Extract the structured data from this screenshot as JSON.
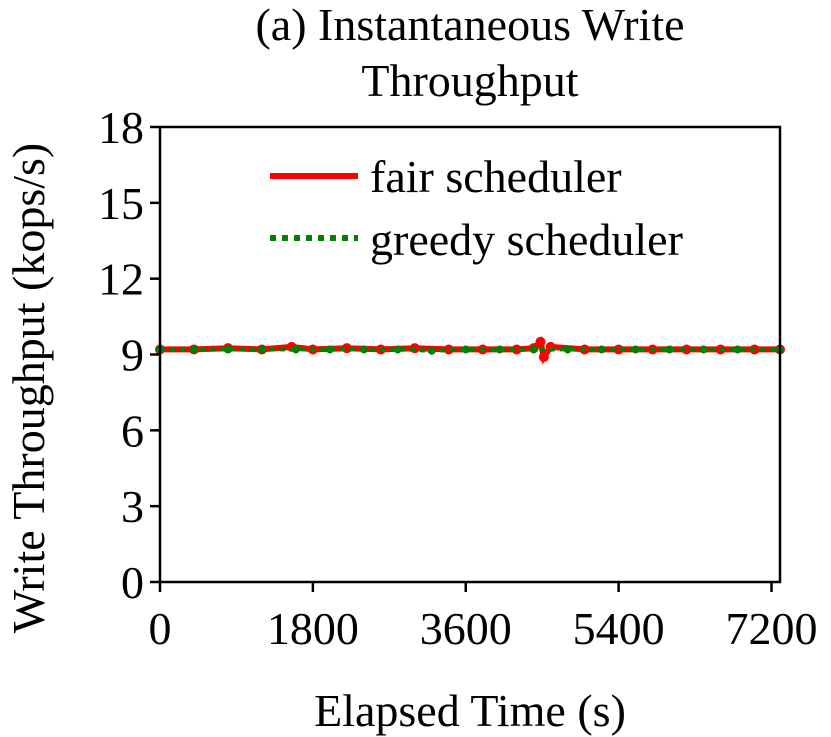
{
  "chart_data": {
    "type": "line",
    "title_lines": [
      "(a) Instantaneous Write",
      "Throughput"
    ],
    "xlabel": "Elapsed Time (s)",
    "ylabel": "Write Throughput (kops/s)",
    "xlim": [
      0,
      7300
    ],
    "ylim": [
      0,
      18
    ],
    "xticks": [
      0,
      1800,
      3600,
      5400,
      7200
    ],
    "yticks": [
      0,
      3,
      6,
      9,
      12,
      15,
      18
    ],
    "grid": false,
    "legend_position": "upper-right",
    "series": [
      {
        "name": "fair scheduler",
        "color": "#ff0000",
        "style": "solid",
        "x": [
          0,
          400,
          800,
          1200,
          1550,
          1800,
          2200,
          2600,
          3000,
          3400,
          3800,
          4200,
          4400,
          4480,
          4520,
          4600,
          5000,
          5400,
          5800,
          6200,
          6600,
          7000,
          7300
        ],
        "y": [
          9.2,
          9.2,
          9.25,
          9.2,
          9.3,
          9.2,
          9.25,
          9.2,
          9.25,
          9.2,
          9.2,
          9.2,
          9.25,
          9.5,
          8.9,
          9.3,
          9.2,
          9.2,
          9.2,
          9.2,
          9.2,
          9.2,
          9.2
        ]
      },
      {
        "name": "greedy scheduler",
        "color": "#008000",
        "style": "dotted",
        "x": [
          0,
          400,
          800,
          1200,
          1600,
          2000,
          2400,
          2800,
          3200,
          3600,
          4000,
          4400,
          4800,
          5200,
          5600,
          6000,
          6400,
          6800,
          7300
        ],
        "y": [
          9.2,
          9.2,
          9.2,
          9.2,
          9.2,
          9.2,
          9.2,
          9.2,
          9.15,
          9.2,
          9.2,
          9.2,
          9.2,
          9.2,
          9.2,
          9.2,
          9.2,
          9.2,
          9.2
        ]
      }
    ]
  }
}
